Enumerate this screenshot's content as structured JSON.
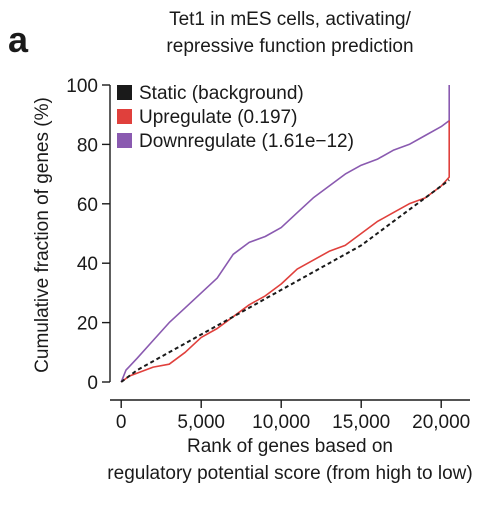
{
  "panel_label": "a",
  "chart_data": {
    "type": "line",
    "title_lines": [
      "Tet1 in mES cells, activating/",
      "repressive function prediction"
    ],
    "xlabel_lines": [
      "Rank of genes based on",
      "regulatory potential score (from high to low)"
    ],
    "ylabel": "Cumulative fraction of genes (%)",
    "xlim": [
      -700,
      21800
    ],
    "ylim": [
      0,
      100
    ],
    "x_ticks": [
      0,
      5000,
      10000,
      15000,
      20000
    ],
    "x_tick_labels": [
      "0",
      "5,000",
      "10,000",
      "15,000",
      "20,000"
    ],
    "y_ticks": [
      0,
      20,
      40,
      60,
      80,
      100
    ],
    "y_tick_labels": [
      "0",
      "20",
      "40",
      "60",
      "80",
      "100"
    ],
    "grid": false,
    "legend_position": "top-left",
    "series": [
      {
        "name": "Static (background)",
        "color": "#1a1a1a",
        "style": "dashed",
        "x": [
          0,
          1000,
          2000,
          3000,
          4000,
          5000,
          6000,
          7000,
          8000,
          9000,
          10000,
          11000,
          12000,
          13000,
          14000,
          15000,
          16000,
          17000,
          18000,
          19000,
          20000,
          20500
        ],
        "y": [
          0,
          4,
          7,
          10,
          13,
          16,
          19,
          22,
          25,
          28,
          31,
          34,
          37,
          40,
          43,
          46,
          50,
          54,
          58,
          62,
          66,
          68
        ]
      },
      {
        "name": "Upregulate (0.197)",
        "color": "#e0403c",
        "style": "solid",
        "x": [
          0,
          500,
          1000,
          2000,
          3000,
          4000,
          5000,
          6000,
          7000,
          8000,
          9000,
          10000,
          11000,
          12000,
          13000,
          14000,
          15000,
          16000,
          17000,
          18000,
          19000,
          20000,
          20500,
          20500
        ],
        "y": [
          0,
          2,
          3,
          5,
          6,
          10,
          15,
          18,
          22,
          26,
          29,
          33,
          38,
          41,
          44,
          46,
          50,
          54,
          57,
          60,
          62,
          66,
          69,
          88
        ]
      },
      {
        "name": "Downregulate (1.61e−12)",
        "color": "#8a5ab0",
        "style": "solid",
        "x": [
          0,
          300,
          1000,
          2000,
          3000,
          4000,
          5000,
          6000,
          7000,
          8000,
          9000,
          10000,
          11000,
          12000,
          13000,
          14000,
          15000,
          16000,
          17000,
          18000,
          19000,
          20000,
          20500,
          20500
        ],
        "y": [
          0,
          4,
          8,
          14,
          20,
          25,
          30,
          35,
          43,
          47,
          49,
          52,
          57,
          62,
          66,
          70,
          73,
          75,
          78,
          80,
          83,
          86,
          88,
          100
        ]
      }
    ]
  }
}
